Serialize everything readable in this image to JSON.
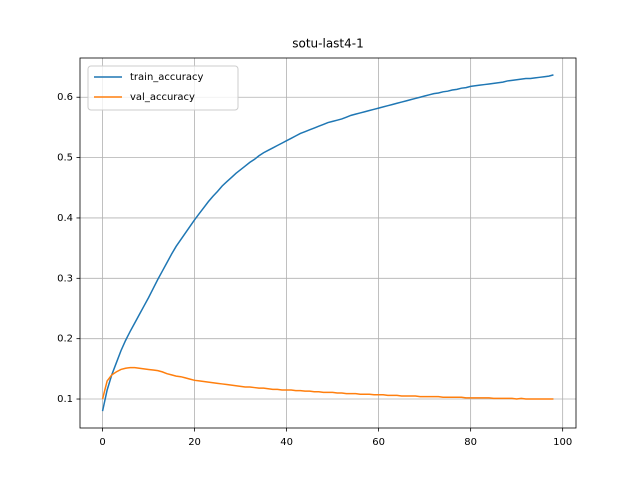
{
  "chart_data": {
    "type": "line",
    "title": "sotu-last4-1",
    "x": [
      0,
      1,
      2,
      3,
      4,
      5,
      6,
      7,
      8,
      9,
      10,
      11,
      12,
      13,
      14,
      15,
      16,
      17,
      18,
      19,
      20,
      21,
      22,
      23,
      24,
      25,
      26,
      27,
      28,
      29,
      30,
      31,
      32,
      33,
      34,
      35,
      36,
      37,
      38,
      39,
      40,
      41,
      42,
      43,
      44,
      45,
      46,
      47,
      48,
      49,
      50,
      51,
      52,
      53,
      54,
      55,
      56,
      57,
      58,
      59,
      60,
      61,
      62,
      63,
      64,
      65,
      66,
      67,
      68,
      69,
      70,
      71,
      72,
      73,
      74,
      75,
      76,
      77,
      78,
      79,
      80,
      81,
      82,
      83,
      84,
      85,
      86,
      87,
      88,
      89,
      90,
      91,
      92,
      93,
      94,
      95,
      96,
      97,
      98
    ],
    "series": [
      {
        "name": "train_accuracy",
        "color": "#1f77b4",
        "values": [
          0.08,
          0.115,
          0.14,
          0.16,
          0.18,
          0.197,
          0.212,
          0.226,
          0.24,
          0.254,
          0.268,
          0.283,
          0.298,
          0.312,
          0.326,
          0.34,
          0.353,
          0.364,
          0.375,
          0.386,
          0.397,
          0.407,
          0.417,
          0.427,
          0.436,
          0.444,
          0.453,
          0.46,
          0.467,
          0.474,
          0.48,
          0.486,
          0.492,
          0.497,
          0.503,
          0.508,
          0.512,
          0.516,
          0.52,
          0.524,
          0.528,
          0.532,
          0.536,
          0.54,
          0.543,
          0.546,
          0.549,
          0.552,
          0.555,
          0.558,
          0.56,
          0.562,
          0.564,
          0.567,
          0.57,
          0.572,
          0.574,
          0.576,
          0.578,
          0.58,
          0.582,
          0.584,
          0.586,
          0.588,
          0.59,
          0.592,
          0.594,
          0.596,
          0.598,
          0.6,
          0.602,
          0.604,
          0.606,
          0.607,
          0.609,
          0.61,
          0.612,
          0.613,
          0.615,
          0.616,
          0.618,
          0.619,
          0.62,
          0.621,
          0.622,
          0.623,
          0.624,
          0.625,
          0.627,
          0.628,
          0.629,
          0.63,
          0.631,
          0.631,
          0.632,
          0.633,
          0.634,
          0.635,
          0.637
        ]
      },
      {
        "name": "val_accuracy",
        "color": "#ff7f0e",
        "values": [
          0.1,
          0.13,
          0.14,
          0.145,
          0.149,
          0.151,
          0.152,
          0.152,
          0.151,
          0.15,
          0.149,
          0.148,
          0.147,
          0.145,
          0.142,
          0.14,
          0.138,
          0.137,
          0.135,
          0.133,
          0.131,
          0.13,
          0.129,
          0.128,
          0.127,
          0.126,
          0.125,
          0.124,
          0.123,
          0.122,
          0.121,
          0.12,
          0.12,
          0.119,
          0.118,
          0.118,
          0.117,
          0.116,
          0.116,
          0.115,
          0.115,
          0.115,
          0.114,
          0.114,
          0.113,
          0.113,
          0.112,
          0.112,
          0.111,
          0.111,
          0.111,
          0.11,
          0.11,
          0.109,
          0.109,
          0.109,
          0.108,
          0.108,
          0.108,
          0.107,
          0.107,
          0.107,
          0.106,
          0.106,
          0.106,
          0.105,
          0.105,
          0.105,
          0.105,
          0.104,
          0.104,
          0.104,
          0.104,
          0.104,
          0.103,
          0.103,
          0.103,
          0.103,
          0.103,
          0.102,
          0.102,
          0.102,
          0.102,
          0.102,
          0.102,
          0.101,
          0.101,
          0.101,
          0.101,
          0.101,
          0.1,
          0.101,
          0.1,
          0.1,
          0.1,
          0.1,
          0.1,
          0.1,
          0.1
        ]
      }
    ],
    "xlim": [
      -4.9,
      102.9
    ],
    "ylim": [
      0.052,
      0.665
    ],
    "xticks": [
      0,
      20,
      40,
      60,
      80,
      100
    ],
    "yticks": [
      0.1,
      0.2,
      0.3,
      0.4,
      0.5,
      0.6
    ],
    "grid": true,
    "legend": "upper left"
  }
}
